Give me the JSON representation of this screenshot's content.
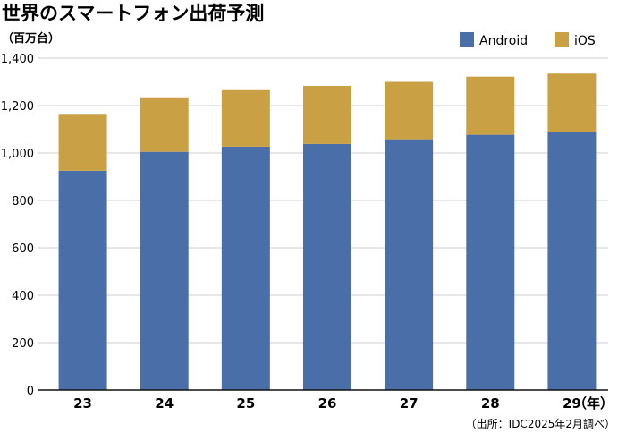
{
  "chart_data": {
    "type": "bar",
    "stacked": true,
    "title": "世界のスマートフォン出荷予測",
    "unit_label": "（百万台）",
    "x_unit_label": "（年）",
    "source": "（出所：IDC2025年2月調べ）",
    "categories": [
      "23",
      "24",
      "25",
      "26",
      "27",
      "28",
      "29"
    ],
    "series": [
      {
        "name": "Android",
        "color": "#4a6fa8",
        "values": [
          925,
          1005,
          1027,
          1038,
          1058,
          1077,
          1087
        ]
      },
      {
        "name": "iOS",
        "color": "#c9a144",
        "values": [
          240,
          230,
          238,
          245,
          242,
          245,
          248
        ]
      }
    ],
    "ylim": [
      0,
      1400
    ],
    "yticks": [
      "0",
      "200",
      "400",
      "600",
      "800",
      "1,000",
      "1,200",
      "1,400"
    ],
    "grid": true,
    "legend_position": "top-right"
  }
}
